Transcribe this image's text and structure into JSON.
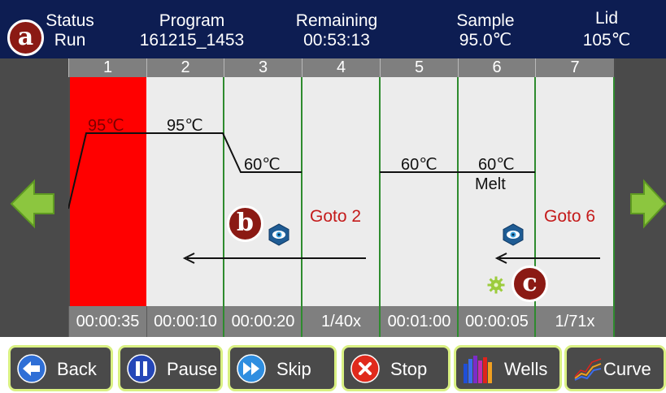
{
  "header": {
    "status": {
      "label": "Status",
      "value": "Run"
    },
    "program": {
      "label": "Program",
      "value": "161215_1453"
    },
    "remaining": {
      "label": "Remaining",
      "value": "00:53:13"
    },
    "sample": {
      "label": "Sample",
      "value": "95.0℃"
    },
    "lid": {
      "label": "Lid",
      "value": "105℃"
    }
  },
  "markers": {
    "a": "a",
    "b": "b",
    "c": "c"
  },
  "steps": [
    {
      "number": "1",
      "temp": "95℃",
      "time": "00:00:35",
      "active": true
    },
    {
      "number": "2",
      "temp": "95℃",
      "time": "00:00:10"
    },
    {
      "number": "3",
      "temp": "60℃",
      "time": "00:00:20"
    },
    {
      "number": "4",
      "goto": "Goto 2",
      "time": "1/40x"
    },
    {
      "number": "5",
      "temp": "60℃",
      "time": "00:01:00"
    },
    {
      "number": "6",
      "temp": "60℃",
      "extra": "Melt",
      "time": "00:00:05"
    },
    {
      "number": "7",
      "goto": "Goto 6",
      "time": "1/71x"
    }
  ],
  "colors": {
    "header_bg": "#0d1d52",
    "active_step": "#ff0000",
    "step_bg": "#ececec",
    "step_divider": "#2e8b2e",
    "goto_text": "#c41a1a",
    "button_border": "#d9f082",
    "nav_arrow": "#8cc63f"
  },
  "icons": {
    "nav_left": "green-left-arrow-icon",
    "nav_right": "green-right-arrow-icon",
    "camera": "blue-hexagon-eye-icon",
    "gear": "green-gear-icon"
  },
  "toolbar": {
    "back": "Back",
    "pause": "Pause",
    "skip": "Skip",
    "stop": "Stop",
    "wells": "Wells",
    "curve": "Curve"
  }
}
